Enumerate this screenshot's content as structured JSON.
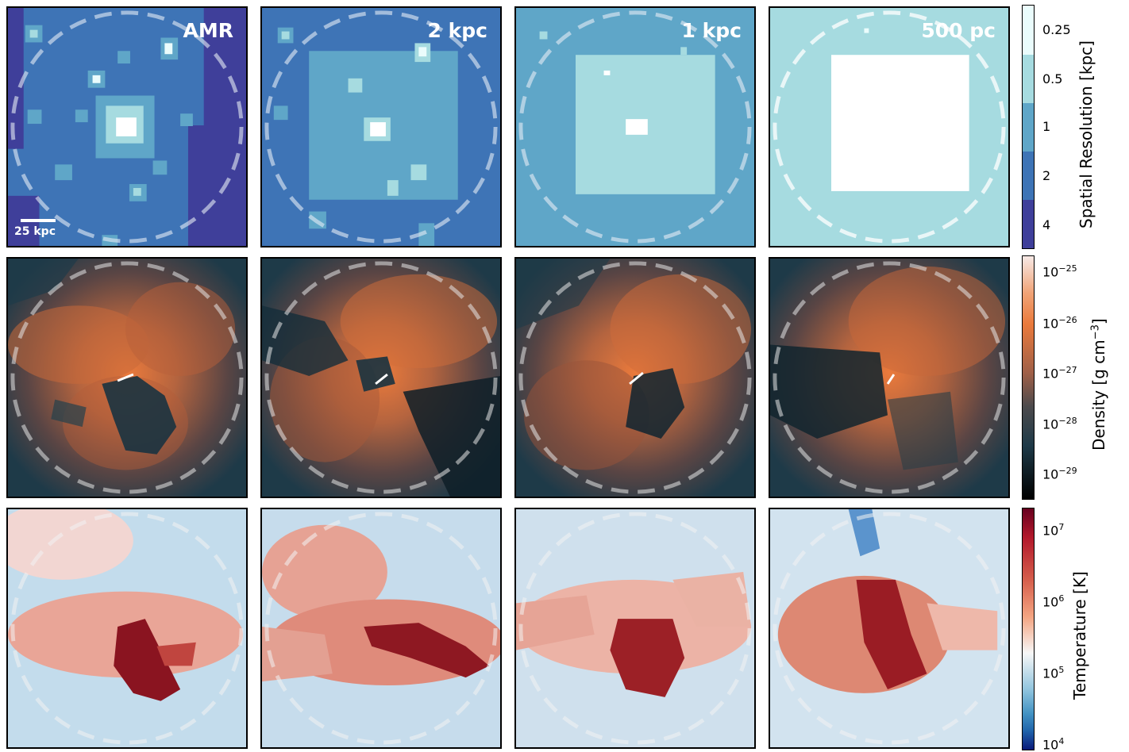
{
  "columns": [
    {
      "title": "AMR"
    },
    {
      "title": "2 kpc"
    },
    {
      "title": "1 kpc"
    },
    {
      "title": "500 pc"
    }
  ],
  "scalebar": {
    "label": "25 kpc"
  },
  "colorbars": {
    "resolution": {
      "label": "Spatial Resolution [kpc]",
      "ticks": [
        "0.25",
        "0.5",
        "1",
        "2",
        "4"
      ],
      "colors": [
        "#eafcfc",
        "#a6dbe0",
        "#5fa6c8",
        "#3e74b6",
        "#3f3f9a"
      ]
    },
    "density": {
      "label_main": "Density [g cm",
      "label_exp": "−3",
      "label_end": "]",
      "ticks": [
        {
          "base": "10",
          "exp": "−25"
        },
        {
          "base": "10",
          "exp": "−26"
        },
        {
          "base": "10",
          "exp": "−27"
        },
        {
          "base": "10",
          "exp": "−28"
        },
        {
          "base": "10",
          "exp": "−29"
        }
      ],
      "colors": [
        "#f7e9e6",
        "#ea7a3c",
        "#7c5448",
        "#1e3a48",
        "#000000"
      ]
    },
    "temperature": {
      "label": "Temperature [K]",
      "ticks": [
        {
          "base": "10",
          "exp": "7"
        },
        {
          "base": "10",
          "exp": "6"
        },
        {
          "base": "10",
          "exp": "5"
        },
        {
          "base": "10",
          "exp": "4"
        }
      ],
      "colors": [
        "#67001f",
        "#c6504b",
        "#f3f3f3",
        "#5a9bd0",
        "#0a1a7a"
      ]
    }
  }
}
